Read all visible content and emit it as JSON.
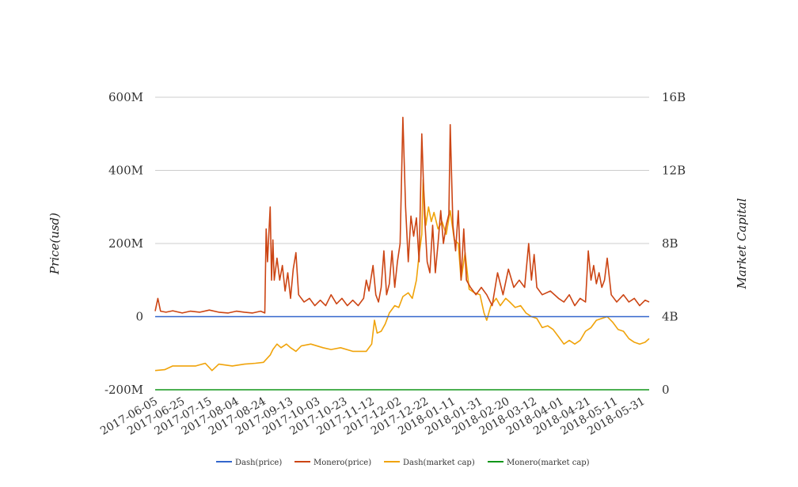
{
  "chart_data": {
    "type": "line",
    "title": "",
    "ylabel_left": "Price(usd)",
    "ylabel_right": "Market Capital",
    "y_left": {
      "min": -200000000,
      "max": 600000000,
      "ticks": [
        -200000000,
        0,
        200000000,
        400000000,
        600000000
      ],
      "tick_labels": [
        "-200M",
        "0",
        "200M",
        "400M",
        "600M"
      ]
    },
    "y_right": {
      "min": 0,
      "max": 16000000000,
      "ticks": [
        0,
        4000000000,
        8000000000,
        12000000000,
        16000000000
      ],
      "tick_labels": [
        "0",
        "4B",
        "8B",
        "12B",
        "16B"
      ]
    },
    "x_tick_labels": [
      "2017-06-05",
      "2017-06-25",
      "2017-07-15",
      "2017-08-04",
      "2017-08-24",
      "2017-09-13",
      "2017-10-03",
      "2017-10-23",
      "2017-11-12",
      "2017-12-02",
      "2017-12-22",
      "2018-01-11",
      "2018-01-31",
      "2018-02-20",
      "2018-03-12",
      "2018-04-01",
      "2018-04-21",
      "2018-05-11",
      "2018-05-31"
    ],
    "x_start": "2017-06-05",
    "x_end": "2018-06-05",
    "grid": true,
    "legend_position": "bottom",
    "series": [
      {
        "name": "Dash(price)",
        "axis": "left",
        "color": "#3366cc",
        "points": [
          [
            "2017-06-05",
            0
          ],
          [
            "2018-06-05",
            0
          ]
        ]
      },
      {
        "name": "Monero(price)",
        "axis": "left",
        "color": "#cc4514",
        "points": [
          [
            "2017-06-05",
            15000000
          ],
          [
            "2017-06-07",
            50000000
          ],
          [
            "2017-06-09",
            15000000
          ],
          [
            "2017-06-13",
            12000000
          ],
          [
            "2017-06-18",
            16000000
          ],
          [
            "2017-06-25",
            10000000
          ],
          [
            "2017-07-01",
            15000000
          ],
          [
            "2017-07-08",
            12000000
          ],
          [
            "2017-07-15",
            18000000
          ],
          [
            "2017-07-22",
            12000000
          ],
          [
            "2017-07-29",
            10000000
          ],
          [
            "2017-08-04",
            15000000
          ],
          [
            "2017-08-10",
            12000000
          ],
          [
            "2017-08-16",
            10000000
          ],
          [
            "2017-08-22",
            15000000
          ],
          [
            "2017-08-25",
            10000000
          ],
          [
            "2017-08-26",
            240000000
          ],
          [
            "2017-08-27",
            150000000
          ],
          [
            "2017-08-29",
            300000000
          ],
          [
            "2017-08-30",
            100000000
          ],
          [
            "2017-08-31",
            210000000
          ],
          [
            "2017-09-01",
            100000000
          ],
          [
            "2017-09-03",
            160000000
          ],
          [
            "2017-09-05",
            100000000
          ],
          [
            "2017-09-07",
            140000000
          ],
          [
            "2017-09-09",
            70000000
          ],
          [
            "2017-09-11",
            120000000
          ],
          [
            "2017-09-13",
            50000000
          ],
          [
            "2017-09-15",
            130000000
          ],
          [
            "2017-09-17",
            175000000
          ],
          [
            "2017-09-19",
            60000000
          ],
          [
            "2017-09-23",
            40000000
          ],
          [
            "2017-09-27",
            50000000
          ],
          [
            "2017-10-01",
            30000000
          ],
          [
            "2017-10-05",
            45000000
          ],
          [
            "2017-10-09",
            30000000
          ],
          [
            "2017-10-13",
            60000000
          ],
          [
            "2017-10-17",
            35000000
          ],
          [
            "2017-10-21",
            50000000
          ],
          [
            "2017-10-25",
            30000000
          ],
          [
            "2017-10-29",
            45000000
          ],
          [
            "2017-11-02",
            30000000
          ],
          [
            "2017-11-06",
            50000000
          ],
          [
            "2017-11-08",
            100000000
          ],
          [
            "2017-11-10",
            70000000
          ],
          [
            "2017-11-13",
            140000000
          ],
          [
            "2017-11-15",
            60000000
          ],
          [
            "2017-11-17",
            40000000
          ],
          [
            "2017-11-19",
            80000000
          ],
          [
            "2017-11-21",
            180000000
          ],
          [
            "2017-11-23",
            60000000
          ],
          [
            "2017-11-25",
            90000000
          ],
          [
            "2017-11-27",
            180000000
          ],
          [
            "2017-11-29",
            80000000
          ],
          [
            "2017-12-01",
            150000000
          ],
          [
            "2017-12-03",
            200000000
          ],
          [
            "2017-12-05",
            545000000
          ],
          [
            "2017-12-07",
            300000000
          ],
          [
            "2017-12-09",
            150000000
          ],
          [
            "2017-12-11",
            275000000
          ],
          [
            "2017-12-13",
            220000000
          ],
          [
            "2017-12-15",
            270000000
          ],
          [
            "2017-12-17",
            150000000
          ],
          [
            "2017-12-19",
            500000000
          ],
          [
            "2017-12-21",
            280000000
          ],
          [
            "2017-12-23",
            150000000
          ],
          [
            "2017-12-25",
            120000000
          ],
          [
            "2017-12-27",
            250000000
          ],
          [
            "2017-12-29",
            120000000
          ],
          [
            "2017-12-31",
            200000000
          ],
          [
            "2018-01-02",
            290000000
          ],
          [
            "2018-01-04",
            200000000
          ],
          [
            "2018-01-06",
            250000000
          ],
          [
            "2018-01-08",
            280000000
          ],
          [
            "2018-01-09",
            525000000
          ],
          [
            "2018-01-11",
            250000000
          ],
          [
            "2018-01-13",
            180000000
          ],
          [
            "2018-01-15",
            290000000
          ],
          [
            "2018-01-17",
            100000000
          ],
          [
            "2018-01-19",
            240000000
          ],
          [
            "2018-01-21",
            100000000
          ],
          [
            "2018-01-24",
            80000000
          ],
          [
            "2018-01-28",
            60000000
          ],
          [
            "2018-02-01",
            80000000
          ],
          [
            "2018-02-05",
            60000000
          ],
          [
            "2018-02-09",
            30000000
          ],
          [
            "2018-02-13",
            120000000
          ],
          [
            "2018-02-17",
            60000000
          ],
          [
            "2018-02-21",
            130000000
          ],
          [
            "2018-02-25",
            80000000
          ],
          [
            "2018-03-01",
            100000000
          ],
          [
            "2018-03-05",
            80000000
          ],
          [
            "2018-03-08",
            200000000
          ],
          [
            "2018-03-10",
            100000000
          ],
          [
            "2018-03-12",
            170000000
          ],
          [
            "2018-03-14",
            80000000
          ],
          [
            "2018-03-18",
            60000000
          ],
          [
            "2018-03-24",
            70000000
          ],
          [
            "2018-03-30",
            50000000
          ],
          [
            "2018-04-03",
            40000000
          ],
          [
            "2018-04-07",
            60000000
          ],
          [
            "2018-04-11",
            30000000
          ],
          [
            "2018-04-15",
            50000000
          ],
          [
            "2018-04-19",
            40000000
          ],
          [
            "2018-04-21",
            180000000
          ],
          [
            "2018-04-23",
            100000000
          ],
          [
            "2018-04-25",
            140000000
          ],
          [
            "2018-04-27",
            90000000
          ],
          [
            "2018-04-29",
            120000000
          ],
          [
            "2018-05-01",
            80000000
          ],
          [
            "2018-05-03",
            100000000
          ],
          [
            "2018-05-05",
            160000000
          ],
          [
            "2018-05-08",
            60000000
          ],
          [
            "2018-05-12",
            40000000
          ],
          [
            "2018-05-17",
            60000000
          ],
          [
            "2018-05-21",
            40000000
          ],
          [
            "2018-05-25",
            50000000
          ],
          [
            "2018-05-29",
            30000000
          ],
          [
            "2018-06-02",
            45000000
          ],
          [
            "2018-06-05",
            40000000
          ]
        ]
      },
      {
        "name": "Dash(market cap)",
        "axis": "right",
        "color": "#f0a30a",
        "points": [
          [
            "2017-06-05",
            1050000000
          ],
          [
            "2017-06-12",
            1100000000
          ],
          [
            "2017-06-18",
            1300000000
          ],
          [
            "2017-06-25",
            1300000000
          ],
          [
            "2017-07-05",
            1300000000
          ],
          [
            "2017-07-12",
            1450000000
          ],
          [
            "2017-07-17",
            1050000000
          ],
          [
            "2017-07-22",
            1400000000
          ],
          [
            "2017-08-01",
            1300000000
          ],
          [
            "2017-08-10",
            1400000000
          ],
          [
            "2017-08-18",
            1450000000
          ],
          [
            "2017-08-24",
            1500000000
          ],
          [
            "2017-08-29",
            1900000000
          ],
          [
            "2017-08-31",
            2200000000
          ],
          [
            "2017-09-03",
            2500000000
          ],
          [
            "2017-09-06",
            2300000000
          ],
          [
            "2017-09-10",
            2500000000
          ],
          [
            "2017-09-13",
            2300000000
          ],
          [
            "2017-09-15",
            2200000000
          ],
          [
            "2017-09-17",
            2100000000
          ],
          [
            "2017-09-21",
            2400000000
          ],
          [
            "2017-09-28",
            2500000000
          ],
          [
            "2017-10-07",
            2300000000
          ],
          [
            "2017-10-13",
            2200000000
          ],
          [
            "2017-10-20",
            2300000000
          ],
          [
            "2017-10-29",
            2100000000
          ],
          [
            "2017-11-08",
            2100000000
          ],
          [
            "2017-11-12",
            2500000000
          ],
          [
            "2017-11-14",
            3800000000
          ],
          [
            "2017-11-16",
            3100000000
          ],
          [
            "2017-11-19",
            3200000000
          ],
          [
            "2017-11-22",
            3600000000
          ],
          [
            "2017-11-25",
            4200000000
          ],
          [
            "2017-11-29",
            4600000000
          ],
          [
            "2017-12-02",
            4500000000
          ],
          [
            "2017-12-05",
            5100000000
          ],
          [
            "2017-12-09",
            5300000000
          ],
          [
            "2017-12-12",
            5000000000
          ],
          [
            "2017-12-15",
            6000000000
          ],
          [
            "2017-12-17",
            7400000000
          ],
          [
            "2017-12-19",
            8500000000
          ],
          [
            "2017-12-20",
            11500000000
          ],
          [
            "2017-12-22",
            9000000000
          ],
          [
            "2017-12-24",
            10000000000
          ],
          [
            "2017-12-26",
            9200000000
          ],
          [
            "2017-12-28",
            9700000000
          ],
          [
            "2017-12-31",
            8800000000
          ],
          [
            "2018-01-03",
            9200000000
          ],
          [
            "2018-01-06",
            8500000000
          ],
          [
            "2018-01-09",
            9800000000
          ],
          [
            "2018-01-12",
            8200000000
          ],
          [
            "2018-01-15",
            8000000000
          ],
          [
            "2018-01-17",
            6000000000
          ],
          [
            "2018-01-20",
            7500000000
          ],
          [
            "2018-01-23",
            5500000000
          ],
          [
            "2018-01-27",
            5300000000
          ],
          [
            "2018-01-31",
            5200000000
          ],
          [
            "2018-02-03",
            4200000000
          ],
          [
            "2018-02-05",
            3800000000
          ],
          [
            "2018-02-08",
            4600000000
          ],
          [
            "2018-02-12",
            5000000000
          ],
          [
            "2018-02-15",
            4600000000
          ],
          [
            "2018-02-19",
            5000000000
          ],
          [
            "2018-02-22",
            4800000000
          ],
          [
            "2018-02-26",
            4500000000
          ],
          [
            "2018-03-02",
            4600000000
          ],
          [
            "2018-03-06",
            4200000000
          ],
          [
            "2018-03-10",
            4000000000
          ],
          [
            "2018-03-14",
            3900000000
          ],
          [
            "2018-03-18",
            3400000000
          ],
          [
            "2018-03-22",
            3500000000
          ],
          [
            "2018-03-26",
            3300000000
          ],
          [
            "2018-03-30",
            2900000000
          ],
          [
            "2018-04-03",
            2500000000
          ],
          [
            "2018-04-07",
            2700000000
          ],
          [
            "2018-04-11",
            2500000000
          ],
          [
            "2018-04-15",
            2700000000
          ],
          [
            "2018-04-19",
            3200000000
          ],
          [
            "2018-04-23",
            3400000000
          ],
          [
            "2018-04-27",
            3800000000
          ],
          [
            "2018-05-01",
            3900000000
          ],
          [
            "2018-05-05",
            4000000000
          ],
          [
            "2018-05-09",
            3700000000
          ],
          [
            "2018-05-13",
            3300000000
          ],
          [
            "2018-05-17",
            3200000000
          ],
          [
            "2018-05-21",
            2800000000
          ],
          [
            "2018-05-25",
            2600000000
          ],
          [
            "2018-05-29",
            2500000000
          ],
          [
            "2018-06-02",
            2600000000
          ],
          [
            "2018-06-05",
            2800000000
          ]
        ]
      },
      {
        "name": "Monero(market cap)",
        "axis": "right",
        "color": "#109618",
        "points": [
          [
            "2017-06-05",
            0
          ],
          [
            "2018-06-05",
            0
          ]
        ]
      }
    ]
  }
}
